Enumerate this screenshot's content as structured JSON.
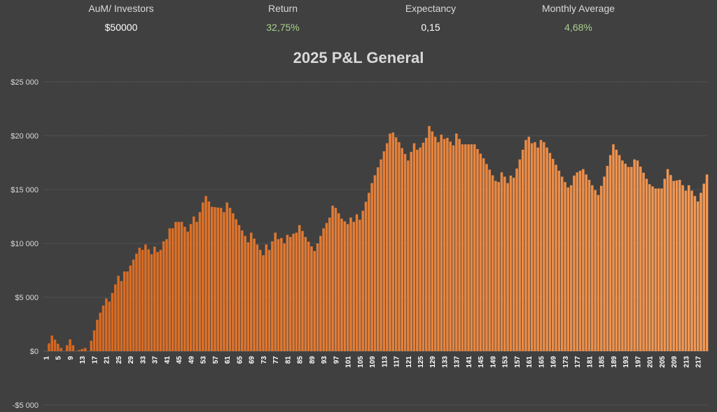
{
  "stats": {
    "aum": {
      "label": "AuM/ Investors",
      "value": "$50000"
    },
    "return": {
      "label": "Return",
      "value": "32,75%"
    },
    "expectancy": {
      "label": "Expectancy",
      "value": "0,15"
    },
    "monthly": {
      "label": "Monthly Average",
      "value": "4,68%"
    }
  },
  "colors": {
    "background": "#404040",
    "bar": "#ed7d31",
    "bar_light": "#f4a46a",
    "positive": "#a9d18e",
    "gridline": "#5f5f5f"
  },
  "chart_data": {
    "type": "bar",
    "title": "2025 P&L General",
    "xlabel": "",
    "ylabel": "",
    "ylim": [
      -5000,
      25000
    ],
    "y_ticks": [
      25000,
      20000,
      15000,
      10000,
      5000,
      0,
      -5000
    ],
    "y_tick_labels": [
      "$25 000",
      "$20 000",
      "$15 000",
      "$10 000",
      "$5 000",
      "$0",
      "-$5 000"
    ],
    "x_tick_labels": [
      "1",
      "5",
      "9",
      "13",
      "17",
      "21",
      "25",
      "29",
      "33",
      "37",
      "41",
      "45",
      "49",
      "53",
      "57",
      "61",
      "65",
      "69",
      "73",
      "77",
      "81",
      "85",
      "89",
      "93",
      "97",
      "101",
      "105",
      "109",
      "113",
      "117",
      "121",
      "125",
      "129",
      "133",
      "137",
      "141",
      "145",
      "149",
      "153",
      "157",
      "161",
      "165",
      "169",
      "173",
      "177",
      "181",
      "185",
      "189",
      "193",
      "197",
      "201",
      "205",
      "209",
      "213",
      "217"
    ],
    "grid": true,
    "legend": "none",
    "keypoints": [
      [
        1,
        0
      ],
      [
        3,
        1450
      ],
      [
        6,
        300
      ],
      [
        7,
        0
      ],
      [
        9,
        1100
      ],
      [
        11,
        0
      ],
      [
        14,
        300
      ],
      [
        15,
        0
      ],
      [
        18,
        2900
      ],
      [
        21,
        4900
      ],
      [
        22,
        4600
      ],
      [
        25,
        7000
      ],
      [
        26,
        6500
      ],
      [
        27,
        7400
      ],
      [
        28,
        7400
      ],
      [
        32,
        9600
      ],
      [
        33,
        9400
      ],
      [
        34,
        9900
      ],
      [
        36,
        9000
      ],
      [
        37,
        9700
      ],
      [
        38,
        9200
      ],
      [
        39,
        9400
      ],
      [
        40,
        10200
      ],
      [
        41,
        10400
      ],
      [
        42,
        11400
      ],
      [
        43,
        11400
      ],
      [
        44,
        12000
      ],
      [
        46,
        12000
      ],
      [
        48,
        11100
      ],
      [
        50,
        12500
      ],
      [
        51,
        12000
      ],
      [
        53,
        13800
      ],
      [
        54,
        14400
      ],
      [
        56,
        13400
      ],
      [
        59,
        13300
      ],
      [
        60,
        12900
      ],
      [
        61,
        13800
      ],
      [
        63,
        12800
      ],
      [
        65,
        11700
      ],
      [
        67,
        10700
      ],
      [
        68,
        10100
      ],
      [
        69,
        11000
      ],
      [
        71,
        9900
      ],
      [
        73,
        8900
      ],
      [
        74,
        9900
      ],
      [
        75,
        9400
      ],
      [
        77,
        11000
      ],
      [
        78,
        10400
      ],
      [
        79,
        10500
      ],
      [
        80,
        10000
      ],
      [
        81,
        10800
      ],
      [
        82,
        10600
      ],
      [
        83,
        10900
      ],
      [
        84,
        11000
      ],
      [
        85,
        11700
      ],
      [
        87,
        10600
      ],
      [
        90,
        9300
      ],
      [
        93,
        11400
      ],
      [
        95,
        12400
      ],
      [
        96,
        13500
      ],
      [
        97,
        13300
      ],
      [
        99,
        12300
      ],
      [
        101,
        11800
      ],
      [
        102,
        12400
      ],
      [
        103,
        12000
      ],
      [
        104,
        12700
      ],
      [
        105,
        12200
      ],
      [
        108,
        14700
      ],
      [
        109,
        15600
      ],
      [
        112,
        17800
      ],
      [
        114,
        19300
      ],
      [
        115,
        20200
      ],
      [
        116,
        20300
      ],
      [
        118,
        19400
      ],
      [
        120,
        18300
      ],
      [
        121,
        17700
      ],
      [
        123,
        19300
      ],
      [
        124,
        18700
      ],
      [
        125,
        18900
      ],
      [
        127,
        19800
      ],
      [
        128,
        20900
      ],
      [
        130,
        19900
      ],
      [
        131,
        19400
      ],
      [
        132,
        20100
      ],
      [
        133,
        19700
      ],
      [
        134,
        19800
      ],
      [
        136,
        19100
      ],
      [
        137,
        20200
      ],
      [
        139,
        19200
      ],
      [
        143,
        19200
      ],
      [
        146,
        17900
      ],
      [
        150,
        15800
      ],
      [
        151,
        15700
      ],
      [
        152,
        16600
      ],
      [
        153,
        16200
      ],
      [
        154,
        15600
      ],
      [
        155,
        16300
      ],
      [
        156,
        16100
      ],
      [
        158,
        17800
      ],
      [
        160,
        19600
      ],
      [
        161,
        19900
      ],
      [
        162,
        19300
      ],
      [
        163,
        19400
      ],
      [
        164,
        18900
      ],
      [
        165,
        19600
      ],
      [
        166,
        19400
      ],
      [
        168,
        18400
      ],
      [
        170,
        17300
      ],
      [
        172,
        16200
      ],
      [
        174,
        15200
      ],
      [
        175,
        15400
      ],
      [
        176,
        16300
      ],
      [
        177,
        16600
      ],
      [
        179,
        16900
      ],
      [
        180,
        16400
      ],
      [
        182,
        15400
      ],
      [
        184,
        14500
      ],
      [
        186,
        16200
      ],
      [
        189,
        19200
      ],
      [
        192,
        17700
      ],
      [
        194,
        17100
      ],
      [
        195,
        17100
      ],
      [
        196,
        17800
      ],
      [
        197,
        17700
      ],
      [
        200,
        16000
      ],
      [
        201,
        15500
      ],
      [
        203,
        15100
      ],
      [
        205,
        15100
      ],
      [
        207,
        16900
      ],
      [
        209,
        15800
      ],
      [
        211,
        15900
      ],
      [
        213,
        14900
      ],
      [
        214,
        15400
      ],
      [
        217,
        13900
      ],
      [
        218,
        14700
      ],
      [
        220,
        16400
      ]
    ]
  }
}
